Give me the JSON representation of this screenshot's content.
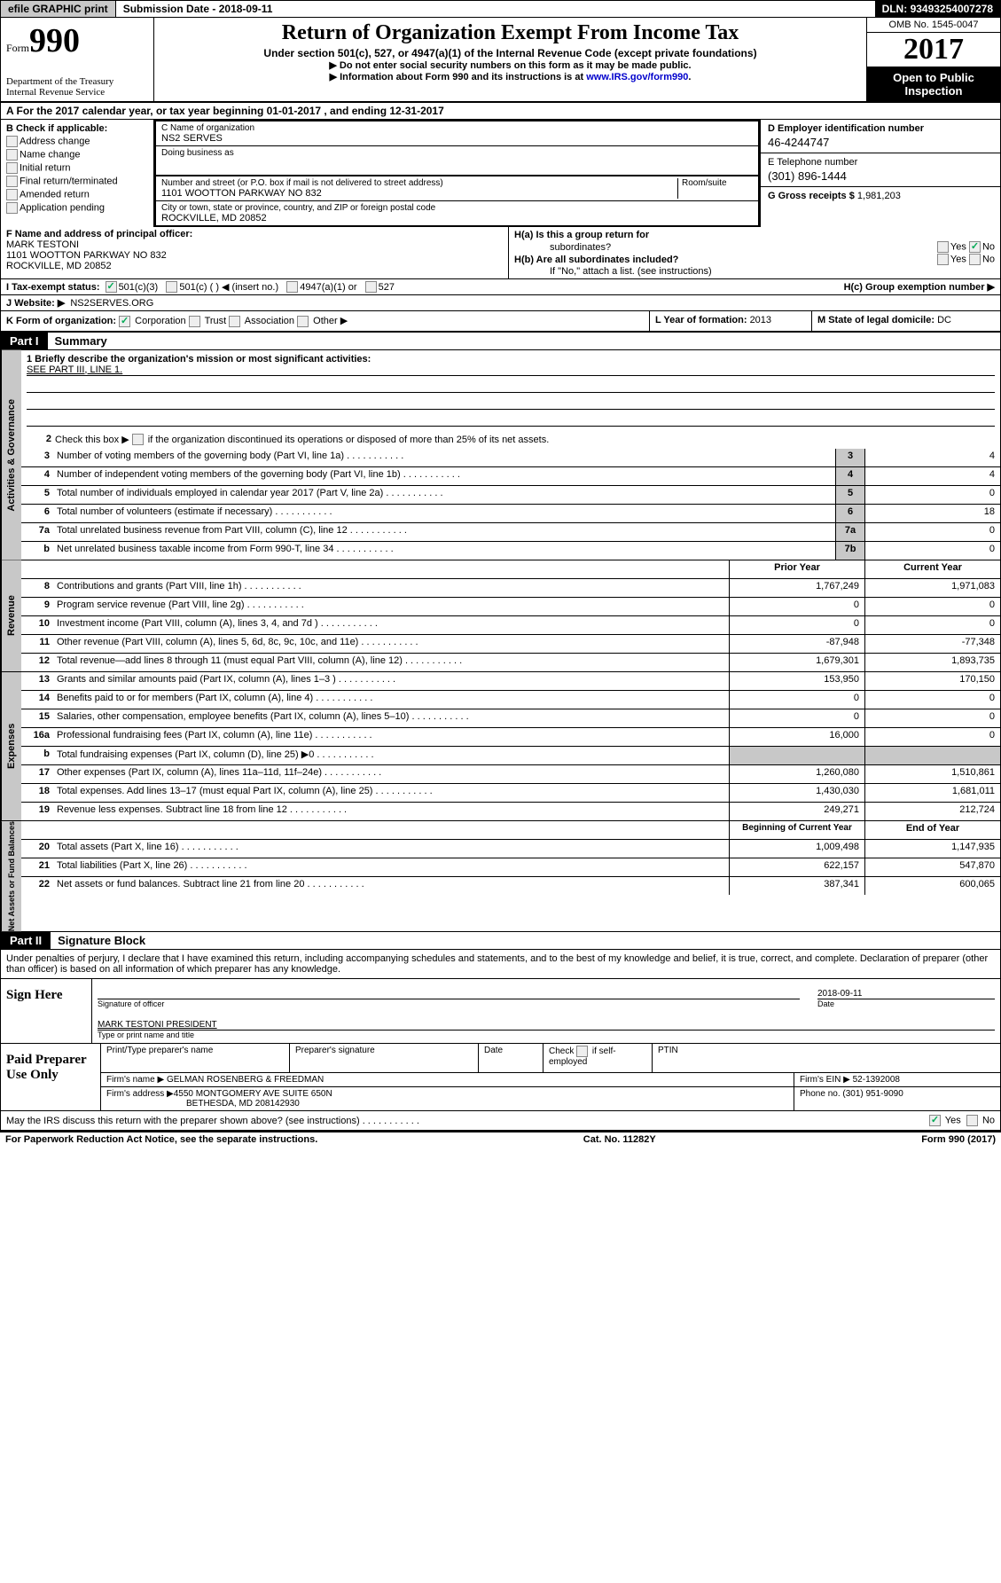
{
  "topbar": {
    "efile": "efile GRAPHIC print",
    "submission_label": "Submission Date - ",
    "submission_date": "2018-09-11",
    "dln_label": "DLN: ",
    "dln": "93493254007278"
  },
  "header": {
    "form_label": "Form",
    "form_num": "990",
    "dept1": "Department of the Treasury",
    "dept2": "Internal Revenue Service",
    "title": "Return of Organization Exempt From Income Tax",
    "subtitle": "Under section 501(c), 527, or 4947(a)(1) of the Internal Revenue Code (except private foundations)",
    "note1": "▶ Do not enter social security numbers on this form as it may be made public.",
    "note2_pre": "▶ Information about Form 990 and its instructions is at ",
    "note2_link": "www.IRS.gov/form990",
    "note2_post": ".",
    "omb": "OMB No. 1545-0047",
    "year": "2017",
    "inspection1": "Open to Public",
    "inspection2": "Inspection"
  },
  "sectionA": "A  For the 2017 calendar year, or tax year beginning 01-01-2017   , and ending 12-31-2017",
  "colB": {
    "label": "B Check if applicable:",
    "items": [
      "Address change",
      "Name change",
      "Initial return",
      "Final return/terminated",
      "Amended return",
      "Application pending"
    ]
  },
  "colC": {
    "name_label": "C Name of organization",
    "name": "NS2 SERVES",
    "dba_label": "Doing business as",
    "addr_label": "Number and street (or P.O. box if mail is not delivered to street address)",
    "room_label": "Room/suite",
    "addr": "1101 WOOTTON PARKWAY NO 832",
    "city_label": "City or town, state or province, country, and ZIP or foreign postal code",
    "city": "ROCKVILLE, MD   20852"
  },
  "colD": {
    "ein_label": "D Employer identification number",
    "ein": "46-4244747",
    "phone_label": "E Telephone number",
    "phone": "(301) 896-1444",
    "gross_label": "G Gross receipts $ ",
    "gross": "1,981,203"
  },
  "rowF": {
    "label": "F  Name and address of principal officer:",
    "name": "MARK TESTONI",
    "addr": "1101 WOOTTON PARKWAY NO 832",
    "city": "ROCKVILLE, MD   20852"
  },
  "rowH": {
    "ha": "H(a)  Is this a group return for",
    "ha2": "subordinates?",
    "hb": "H(b)  Are all subordinates included?",
    "hb_note": "If \"No,\" attach a list. (see instructions)",
    "hc": "H(c)  Group exemption number ▶",
    "yes": "Yes",
    "no": "No"
  },
  "rowI": {
    "label": "I  Tax-exempt status:",
    "opt1": "501(c)(3)",
    "opt2": "501(c) (   ) ◀ (insert no.)",
    "opt3": "4947(a)(1) or",
    "opt4": "527"
  },
  "rowJ": {
    "label": "J  Website: ▶",
    "value": "NS2SERVES.ORG"
  },
  "rowK": {
    "label": "K Form of organization:",
    "opts": [
      "Corporation",
      "Trust",
      "Association",
      "Other ▶"
    ],
    "l_label": "L Year of formation: ",
    "l_value": "2013",
    "m_label": "M State of legal domicile: ",
    "m_value": "DC"
  },
  "part1": {
    "tab": "Part I",
    "title": "Summary"
  },
  "governance": {
    "vtab": "Activities & Governance",
    "l1_label": "1  Briefly describe the organization's mission or most significant activities:",
    "l1_value": "SEE PART III, LINE 1.",
    "l2": "Check this box ▶       if the organization discontinued its operations or disposed of more than 25% of its net assets.",
    "rows": [
      {
        "n": "3",
        "t": "Number of voting members of the governing body (Part VI, line 1a)",
        "box": "3",
        "v": "4"
      },
      {
        "n": "4",
        "t": "Number of independent voting members of the governing body (Part VI, line 1b)",
        "box": "4",
        "v": "4"
      },
      {
        "n": "5",
        "t": "Total number of individuals employed in calendar year 2017 (Part V, line 2a)",
        "box": "5",
        "v": "0"
      },
      {
        "n": "6",
        "t": "Total number of volunteers (estimate if necessary)",
        "box": "6",
        "v": "18"
      },
      {
        "n": "7a",
        "t": "Total unrelated business revenue from Part VIII, column (C), line 12",
        "box": "7a",
        "v": "0"
      },
      {
        "n": "b",
        "t": "Net unrelated business taxable income from Form 990-T, line 34",
        "box": "7b",
        "v": "0"
      }
    ]
  },
  "revenue": {
    "vtab": "Revenue",
    "h1": "Prior Year",
    "h2": "Current Year",
    "rows": [
      {
        "n": "8",
        "t": "Contributions and grants (Part VIII, line 1h)",
        "py": "1,767,249",
        "cy": "1,971,083"
      },
      {
        "n": "9",
        "t": "Program service revenue (Part VIII, line 2g)",
        "py": "0",
        "cy": "0"
      },
      {
        "n": "10",
        "t": "Investment income (Part VIII, column (A), lines 3, 4, and 7d )",
        "py": "0",
        "cy": "0"
      },
      {
        "n": "11",
        "t": "Other revenue (Part VIII, column (A), lines 5, 6d, 8c, 9c, 10c, and 11e)",
        "py": "-87,948",
        "cy": "-77,348"
      },
      {
        "n": "12",
        "t": "Total revenue—add lines 8 through 11 (must equal Part VIII, column (A), line 12)",
        "py": "1,679,301",
        "cy": "1,893,735"
      }
    ]
  },
  "expenses": {
    "vtab": "Expenses",
    "rows": [
      {
        "n": "13",
        "t": "Grants and similar amounts paid (Part IX, column (A), lines 1–3 )",
        "py": "153,950",
        "cy": "170,150"
      },
      {
        "n": "14",
        "t": "Benefits paid to or for members (Part IX, column (A), line 4)",
        "py": "0",
        "cy": "0"
      },
      {
        "n": "15",
        "t": "Salaries, other compensation, employee benefits (Part IX, column (A), lines 5–10)",
        "py": "0",
        "cy": "0"
      },
      {
        "n": "16a",
        "t": "Professional fundraising fees (Part IX, column (A), line 11e)",
        "py": "16,000",
        "cy": "0"
      },
      {
        "n": "b",
        "t": "Total fundraising expenses (Part IX, column (D), line 25) ▶0",
        "py": "",
        "cy": "",
        "shaded": true
      },
      {
        "n": "17",
        "t": "Other expenses (Part IX, column (A), lines 11a–11d, 11f–24e)",
        "py": "1,260,080",
        "cy": "1,510,861"
      },
      {
        "n": "18",
        "t": "Total expenses. Add lines 13–17 (must equal Part IX, column (A), line 25)",
        "py": "1,430,030",
        "cy": "1,681,011"
      },
      {
        "n": "19",
        "t": "Revenue less expenses. Subtract line 18 from line 12",
        "py": "249,271",
        "cy": "212,724"
      }
    ]
  },
  "netassets": {
    "vtab": "Net Assets or Fund Balances",
    "h1": "Beginning of Current Year",
    "h2": "End of Year",
    "rows": [
      {
        "n": "20",
        "t": "Total assets (Part X, line 16)",
        "py": "1,009,498",
        "cy": "1,147,935"
      },
      {
        "n": "21",
        "t": "Total liabilities (Part X, line 26)",
        "py": "622,157",
        "cy": "547,870"
      },
      {
        "n": "22",
        "t": "Net assets or fund balances. Subtract line 21 from line 20",
        "py": "387,341",
        "cy": "600,065"
      }
    ]
  },
  "part2": {
    "tab": "Part II",
    "title": "Signature Block"
  },
  "sig": {
    "intro": "Under penalties of perjury, I declare that I have examined this return, including accompanying schedules and statements, and to the best of my knowledge and belief, it is true, correct, and complete. Declaration of preparer (other than officer) is based on all information of which preparer has any knowledge.",
    "sign_here": "Sign Here",
    "sig_officer": "Signature of officer",
    "date": "2018-09-11",
    "date_label": "Date",
    "name": "MARK TESTONI PRESIDENT",
    "name_label": "Type or print name and title",
    "paid": "Paid Preparer Use Only",
    "prep_name_label": "Print/Type preparer's name",
    "prep_sig_label": "Preparer's signature",
    "prep_date_label": "Date",
    "check_label": "Check         if self-employed",
    "ptin_label": "PTIN",
    "firm_name_label": "Firm's name      ▶ ",
    "firm_name": "GELMAN ROSENBERG & FREEDMAN",
    "firm_ein_label": "Firm's EIN ▶ ",
    "firm_ein": "52-1392008",
    "firm_addr_label": "Firm's address ▶",
    "firm_addr": "4550 MONTGOMERY AVE SUITE 650N",
    "firm_city": "BETHESDA, MD   208142930",
    "firm_phone_label": "Phone no. ",
    "firm_phone": "(301) 951-9090",
    "discuss": "May the IRS discuss this return with the preparer shown above? (see instructions)",
    "yes": "Yes",
    "no": "No"
  },
  "footer": {
    "left": "For Paperwork Reduction Act Notice, see the separate instructions.",
    "center": "Cat. No. 11282Y",
    "right": "Form 990 (2017)"
  }
}
